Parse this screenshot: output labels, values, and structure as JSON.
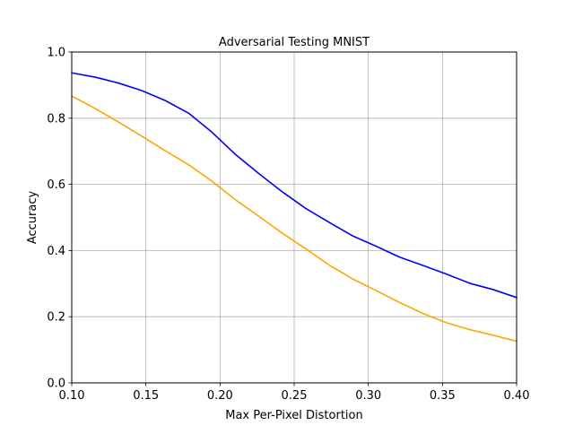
{
  "chart_data": {
    "type": "line",
    "title": "Adversarial Testing MNIST",
    "xlabel": "Max Per-Pixel Distortion",
    "ylabel": "Accuracy",
    "xlim": [
      0.1,
      0.4
    ],
    "ylim": [
      0.0,
      1.0
    ],
    "x_ticks": [
      "0.10",
      "0.15",
      "0.20",
      "0.25",
      "0.30",
      "0.35",
      "0.40"
    ],
    "y_ticks": [
      "0.0",
      "0.2",
      "0.4",
      "0.6",
      "0.8",
      "1.0"
    ],
    "grid": true,
    "legend": "none",
    "series": [
      {
        "color": "#0000ff",
        "x": [
          0.1,
          0.1158,
          0.1316,
          0.1474,
          0.1632,
          0.1789,
          0.1947,
          0.2105,
          0.2263,
          0.2421,
          0.2579,
          0.2737,
          0.2895,
          0.3053,
          0.3211,
          0.3368,
          0.3526,
          0.3684,
          0.3842,
          0.4
        ],
        "y": [
          0.937,
          0.924,
          0.906,
          0.883,
          0.853,
          0.815,
          0.757,
          0.69,
          0.632,
          0.577,
          0.527,
          0.485,
          0.444,
          0.413,
          0.38,
          0.355,
          0.329,
          0.301,
          0.282,
          0.258
        ]
      },
      {
        "color": "#ffa500",
        "x": [
          0.1,
          0.1158,
          0.1316,
          0.1474,
          0.1632,
          0.1789,
          0.1947,
          0.2105,
          0.2263,
          0.2421,
          0.2579,
          0.2737,
          0.2895,
          0.3053,
          0.3211,
          0.3368,
          0.3526,
          0.3684,
          0.3842,
          0.4
        ],
        "y": [
          0.867,
          0.829,
          0.788,
          0.745,
          0.701,
          0.659,
          0.609,
          0.553,
          0.503,
          0.452,
          0.405,
          0.356,
          0.314,
          0.279,
          0.243,
          0.21,
          0.182,
          0.161,
          0.144,
          0.126
        ]
      }
    ]
  }
}
